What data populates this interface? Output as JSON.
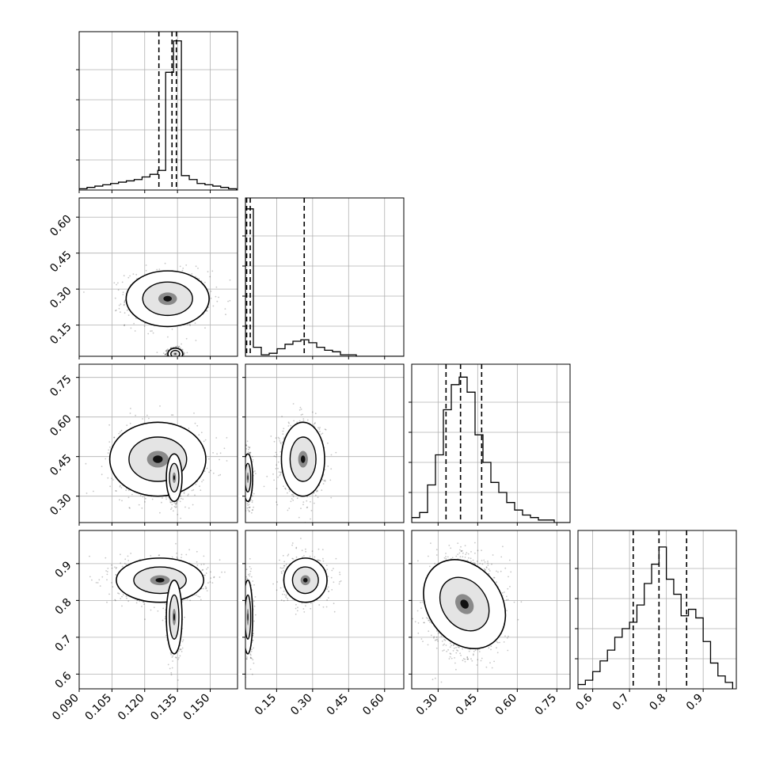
{
  "chart_data": {
    "type": "corner",
    "grid": true,
    "parameters": [
      {
        "xlim": [
          0.09,
          0.1625
        ],
        "ticks": [
          0.09,
          0.105,
          0.12,
          0.135,
          0.15
        ],
        "tick_labels": [
          "0.090",
          "0.105",
          "0.120",
          "0.135",
          "0.150"
        ],
        "hist_bins": [
          0.09,
          0.0936,
          0.0972,
          0.1008,
          0.1044,
          0.108,
          0.1116,
          0.1152,
          0.1188,
          0.1224,
          0.126,
          0.1296,
          0.1332,
          0.1368,
          0.1404,
          0.144,
          0.1476,
          0.1512,
          0.1548,
          0.1584,
          0.162
        ],
        "hist_counts": [
          1,
          2,
          3,
          4,
          5,
          6,
          7,
          8,
          10,
          12,
          15,
          90,
          114,
          11,
          8,
          5,
          4,
          3,
          2,
          1
        ],
        "hist_ylim": [
          0,
          115
        ],
        "quantiles": [
          0.1265,
          0.1325,
          0.1345
        ]
      },
      {
        "xlim": [
          0.02,
          0.68
        ],
        "ticks": [
          0.15,
          0.3,
          0.45,
          0.6
        ],
        "tick_labels": [
          "0.15",
          "0.30",
          "0.45",
          "0.60"
        ],
        "hist_bins": [
          0.02,
          0.053,
          0.086,
          0.119,
          0.152,
          0.185,
          0.218,
          0.251,
          0.284,
          0.317,
          0.35,
          0.383,
          0.416,
          0.449,
          0.482,
          0.515,
          0.548,
          0.581,
          0.614,
          0.647,
          0.68
        ],
        "hist_counts": [
          98,
          6,
          1,
          2,
          5,
          8,
          10,
          11,
          9,
          6,
          4,
          3,
          1,
          1,
          0,
          0,
          0,
          0,
          0,
          0
        ],
        "hist_ylim": [
          0,
          100
        ],
        "quantiles": [
          0.025,
          0.04,
          0.265
        ]
      },
      {
        "xlim": [
          0.2,
          0.8
        ],
        "ticks": [
          0.3,
          0.45,
          0.6,
          0.75
        ],
        "tick_labels": [
          "0.30",
          "0.45",
          "0.60",
          "0.75"
        ],
        "hist_bins": [
          0.2,
          0.23,
          0.26,
          0.29,
          0.32,
          0.35,
          0.38,
          0.41,
          0.44,
          0.47,
          0.5,
          0.53,
          0.56,
          0.59,
          0.62,
          0.65,
          0.68,
          0.71,
          0.74,
          0.77,
          0.8
        ],
        "hist_counts": [
          2,
          4,
          15,
          27,
          45,
          55,
          58,
          52,
          35,
          24,
          16,
          12,
          8,
          5,
          3,
          2,
          1,
          1,
          0,
          0
        ],
        "hist_ylim": [
          0,
          60
        ],
        "quantiles": [
          0.33,
          0.385,
          0.465
        ]
      },
      {
        "xlim": [
          0.56,
          0.99
        ],
        "ticks": [
          0.6,
          0.7,
          0.8,
          0.9
        ],
        "tick_labels": [
          "0.6",
          "0.7",
          "0.8",
          "0.9"
        ],
        "hist_bins": [
          0.56,
          0.58,
          0.6,
          0.62,
          0.64,
          0.66,
          0.68,
          0.7,
          0.72,
          0.74,
          0.76,
          0.78,
          0.8,
          0.82,
          0.84,
          0.86,
          0.88,
          0.9,
          0.92,
          0.94,
          0.96,
          0.98
        ],
        "hist_counts": [
          2,
          4,
          8,
          13,
          18,
          24,
          28,
          31,
          39,
          49,
          58,
          66,
          51,
          44,
          34,
          37,
          33,
          22,
          12,
          6,
          3
        ],
        "hist_ylim": [
          0,
          70
        ],
        "quantiles": [
          0.71,
          0.78,
          0.855
        ]
      }
    ],
    "y_axis_labels": [
      null,
      {
        "ticks": [
          0.15,
          0.3,
          0.45,
          0.6
        ],
        "tick_labels": [
          "0.15",
          "0.30",
          "0.45",
          "0.60"
        ]
      },
      {
        "ticks": [
          0.3,
          0.45,
          0.6,
          0.75
        ],
        "tick_labels": [
          "0.30",
          "0.45",
          "0.60",
          "0.75"
        ]
      },
      {
        "ticks": [
          0.6,
          0.7,
          0.8,
          0.9
        ],
        "tick_labels": [
          "0.6",
          "0.7",
          "0.8",
          "0.9"
        ]
      }
    ],
    "pair_panels": [
      {
        "row": 1,
        "col": 0,
        "modes": [
          {
            "x": 0.1305,
            "y": 0.26,
            "sx": 0.0095,
            "sy": 0.058,
            "w": 0.52,
            "rot": 0
          },
          {
            "x": 0.134,
            "y": 0.03,
            "sx": 0.0017,
            "sy": 0.012,
            "w": 0.48,
            "rot": 0
          }
        ]
      },
      {
        "row": 2,
        "col": 0,
        "modes": [
          {
            "x": 0.126,
            "y": 0.44,
            "sx": 0.011,
            "sy": 0.07,
            "w": 0.5,
            "rot": 0
          },
          {
            "x": 0.1335,
            "y": 0.37,
            "sx": 0.0018,
            "sy": 0.045,
            "w": 0.5,
            "rot": 0
          }
        ]
      },
      {
        "row": 2,
        "col": 1,
        "modes": [
          {
            "x": 0.26,
            "y": 0.44,
            "sx": 0.045,
            "sy": 0.07,
            "w": 0.52,
            "rot": 0
          },
          {
            "x": 0.03,
            "y": 0.37,
            "sx": 0.01,
            "sy": 0.045,
            "w": 0.48,
            "rot": 0
          }
        ]
      },
      {
        "row": 3,
        "col": 0,
        "modes": [
          {
            "x": 0.127,
            "y": 0.855,
            "sx": 0.01,
            "sy": 0.03,
            "w": 0.52,
            "rot": 0
          },
          {
            "x": 0.1335,
            "y": 0.755,
            "sx": 0.0018,
            "sy": 0.05,
            "w": 0.48,
            "rot": 0
          }
        ]
      },
      {
        "row": 3,
        "col": 1,
        "modes": [
          {
            "x": 0.27,
            "y": 0.855,
            "sx": 0.045,
            "sy": 0.03,
            "w": 0.52,
            "rot": 0
          },
          {
            "x": 0.03,
            "y": 0.755,
            "sx": 0.01,
            "sy": 0.05,
            "w": 0.48,
            "rot": 0
          }
        ]
      },
      {
        "row": 3,
        "col": 2,
        "modes": [
          {
            "x": 0.4,
            "y": 0.79,
            "sx": 0.07,
            "sy": 0.065,
            "w": 1.0,
            "rot": 0.62
          }
        ]
      }
    ],
    "contour_levels": [
      0.393,
      0.865
    ]
  }
}
